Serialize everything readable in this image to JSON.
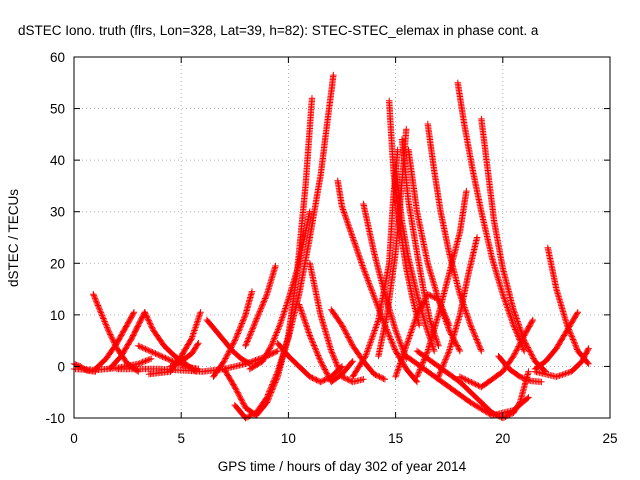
{
  "chart_data": {
    "type": "scatter",
    "title": "dSTEC Iono. truth (flrs, Lon=328, Lat=39, h=82): STEC-STEC_elemax in phase cont. a",
    "xlabel": "GPS time / hours of day 302 of year 2014",
    "ylabel": "dSTEC  / TECUs",
    "xlim": [
      0,
      25
    ],
    "ylim": [
      -10,
      60
    ],
    "xticks": [
      0,
      5,
      10,
      15,
      20,
      25
    ],
    "yticks": [
      -10,
      0,
      10,
      20,
      30,
      40,
      50,
      60
    ],
    "grid": true,
    "marker": "+",
    "series_color": "#ff0000",
    "arcs": [
      {
        "x": [
          0.0,
          0.3,
          0.6,
          1.0
        ],
        "y": [
          0.5,
          0.0,
          -0.8,
          -1.0
        ]
      },
      {
        "x": [
          0.0,
          1.0,
          2.0,
          3.0,
          3.6
        ],
        "y": [
          -0.5,
          -0.7,
          -0.3,
          0.5,
          1.5
        ]
      },
      {
        "x": [
          0.9,
          1.2,
          1.6,
          2.0,
          2.5,
          3.0
        ],
        "y": [
          14.0,
          11.0,
          7.0,
          3.5,
          0.5,
          -1.0
        ]
      },
      {
        "x": [
          1.0,
          1.5,
          2.0,
          2.4,
          2.8
        ],
        "y": [
          -0.5,
          1.5,
          4.5,
          7.5,
          10.5
        ]
      },
      {
        "x": [
          1.7,
          2.2,
          2.7,
          3.0,
          3.3
        ],
        "y": [
          -0.3,
          2.0,
          5.5,
          8.0,
          10.5
        ]
      },
      {
        "x": [
          3.3,
          3.7,
          4.2,
          4.7,
          5.2,
          5.7
        ],
        "y": [
          10.5,
          7.0,
          4.0,
          2.0,
          0.5,
          -1.0
        ]
      },
      {
        "x": [
          3.0,
          3.8,
          4.6,
          5.2,
          5.8
        ],
        "y": [
          4.0,
          2.5,
          1.0,
          0.0,
          -0.5
        ]
      },
      {
        "x": [
          3.5,
          4.5,
          5.0,
          5.5,
          5.9
        ],
        "y": [
          -1.5,
          -1.0,
          2.0,
          5.5,
          10.5
        ]
      },
      {
        "x": [
          4.5,
          5.0,
          5.5,
          5.8
        ],
        "y": [
          0.0,
          1.0,
          2.5,
          4.5
        ]
      },
      {
        "x": [
          2.0,
          4.0,
          6.0,
          7.0,
          8.0,
          9.0,
          9.5
        ],
        "y": [
          -0.5,
          -0.5,
          -1.0,
          -0.5,
          0.5,
          2.0,
          3.0
        ]
      },
      {
        "x": [
          6.2,
          6.6,
          7.0,
          7.4,
          7.8,
          8.2
        ],
        "y": [
          9.0,
          7.0,
          5.0,
          3.0,
          1.5,
          0.5
        ]
      },
      {
        "x": [
          7.0,
          7.5,
          8.0,
          8.5,
          9.0,
          9.5,
          10.0,
          10.4,
          10.8,
          11.1
        ],
        "y": [
          -0.5,
          -4.0,
          -8.0,
          -9.5,
          -7.0,
          -2.0,
          6.0,
          18.0,
          35.0,
          52.0
        ]
      },
      {
        "x": [
          7.5,
          8.0,
          8.5,
          9.0,
          9.5,
          10.0,
          10.5,
          11.0,
          11.5,
          11.9,
          12.1
        ],
        "y": [
          -7.5,
          -10.0,
          -9.0,
          -6.0,
          -1.0,
          5.5,
          14.0,
          25.0,
          37.0,
          50.0,
          56.5
        ]
      },
      {
        "x": [
          6.5,
          7.0,
          7.5,
          8.0,
          8.3
        ],
        "y": [
          -2.0,
          1.0,
          5.0,
          10.0,
          14.5
        ]
      },
      {
        "x": [
          8.2,
          8.8,
          9.2,
          9.6,
          10.0,
          10.5,
          11.0
        ],
        "y": [
          -0.5,
          1.0,
          4.0,
          8.0,
          13.0,
          20.0,
          30.0
        ]
      },
      {
        "x": [
          8.0,
          8.5,
          9.0,
          9.4
        ],
        "y": [
          4.0,
          9.0,
          14.0,
          19.5
        ]
      },
      {
        "x": [
          9.5,
          10.0,
          10.5,
          11.0,
          11.5,
          12.0,
          12.5
        ],
        "y": [
          4.5,
          2.0,
          0.0,
          -2.0,
          -3.0,
          -2.0,
          0.0
        ]
      },
      {
        "x": [
          10.5,
          11.0,
          11.5,
          12.0,
          12.5,
          13.0
        ],
        "y": [
          12.0,
          6.0,
          1.0,
          -3.0,
          -1.5,
          1.0
        ]
      },
      {
        "x": [
          11.0,
          11.5,
          12.0,
          12.5,
          13.0,
          13.5
        ],
        "y": [
          20.0,
          10.0,
          3.0,
          -2.0,
          -3.0,
          -2.5
        ]
      },
      {
        "x": [
          12.3,
          12.5,
          13.0,
          13.5,
          14.0,
          14.5,
          15.0,
          15.5,
          16.0
        ],
        "y": [
          36.0,
          31.0,
          25.0,
          19.0,
          13.5,
          8.0,
          3.0,
          -0.5,
          -3.0
        ]
      },
      {
        "x": [
          12.0,
          12.5,
          13.0,
          13.5,
          14.0,
          14.5
        ],
        "y": [
          11.0,
          8.0,
          4.0,
          1.0,
          -1.5,
          -2.5
        ]
      },
      {
        "x": [
          13.5,
          14.0,
          14.5,
          15.0,
          15.5
        ],
        "y": [
          31.5,
          22.0,
          14.0,
          7.0,
          1.5
        ]
      },
      {
        "x": [
          13.0,
          13.6,
          14.2,
          14.7,
          14.9,
          15.1
        ],
        "y": [
          -2.0,
          2.0,
          9.0,
          20.0,
          33.0,
          42.0
        ]
      },
      {
        "x": [
          14.7,
          14.9,
          15.2,
          15.5,
          15.8,
          16.1
        ],
        "y": [
          51.5,
          38.0,
          27.0,
          19.0,
          13.0,
          8.0
        ]
      },
      {
        "x": [
          14.2,
          14.6,
          15.0,
          15.3,
          15.5
        ],
        "y": [
          2.0,
          10.0,
          22.0,
          36.0,
          46.0
        ]
      },
      {
        "x": [
          15.0,
          15.3,
          15.6,
          16.0,
          16.4,
          16.8
        ],
        "y": [
          39.0,
          28.0,
          21.0,
          14.0,
          8.0,
          3.0
        ]
      },
      {
        "x": [
          15.3,
          15.6,
          16.0,
          16.3,
          16.6,
          17.0
        ],
        "y": [
          44.0,
          32.0,
          22.0,
          15.0,
          9.0,
          4.0
        ]
      },
      {
        "x": [
          15.6,
          16.0,
          16.5,
          17.0,
          17.5,
          18.0
        ],
        "y": [
          42.0,
          30.0,
          20.0,
          13.0,
          7.0,
          3.0
        ]
      },
      {
        "x": [
          15.0,
          15.5,
          16.0,
          16.5,
          17.0,
          17.5
        ],
        "y": [
          -2.0,
          4.0,
          10.0,
          14.0,
          13.0,
          8.0
        ]
      },
      {
        "x": [
          16.0,
          16.5,
          17.0,
          17.5,
          18.0,
          18.3
        ],
        "y": [
          -2.0,
          3.0,
          10.0,
          18.0,
          26.0,
          34.0
        ]
      },
      {
        "x": [
          16.5,
          16.8,
          17.1,
          17.5,
          18.0,
          18.5,
          19.0
        ],
        "y": [
          47.0,
          38.0,
          30.0,
          22.0,
          14.0,
          8.0,
          3.0
        ]
      },
      {
        "x": [
          17.0,
          17.5,
          18.0,
          18.4,
          18.8
        ],
        "y": [
          -2.0,
          3.0,
          10.0,
          18.0,
          25.0
        ]
      },
      {
        "x": [
          17.9,
          18.2,
          18.6,
          19.0,
          19.5,
          20.0,
          20.5,
          21.0
        ],
        "y": [
          55.0,
          47.0,
          38.0,
          30.0,
          21.0,
          14.0,
          8.0,
          3.0
        ]
      },
      {
        "x": [
          19.0,
          19.3,
          19.6,
          20.0,
          20.5,
          21.0,
          21.5,
          22.0
        ],
        "y": [
          48.0,
          38.0,
          28.0,
          19.0,
          11.0,
          5.0,
          1.0,
          -1.0
        ]
      },
      {
        "x": [
          16.0,
          17.0,
          18.0,
          19.0,
          19.5,
          20.0,
          20.5,
          20.8,
          21.2
        ],
        "y": [
          3.0,
          0.0,
          -3.0,
          -7.0,
          -9.0,
          -10.0,
          -9.0,
          -7.0,
          -1.0
        ]
      },
      {
        "x": [
          15.5,
          16.5,
          17.5,
          18.5,
          19.5,
          20.5,
          21.2
        ],
        "y": [
          2.0,
          -1.0,
          -4.0,
          -7.0,
          -9.5,
          -8.5,
          -6.0
        ]
      },
      {
        "x": [
          18.0,
          19.0,
          20.0,
          20.5,
          21.0,
          21.4
        ],
        "y": [
          -2.0,
          -4.0,
          -1.0,
          2.0,
          6.0,
          9.0
        ]
      },
      {
        "x": [
          19.8,
          20.3,
          20.8,
          21.3,
          21.8
        ],
        "y": [
          2.0,
          -0.5,
          -2.0,
          -2.8,
          -3.0
        ]
      },
      {
        "x": [
          22.1,
          22.5,
          23.0,
          23.5,
          24.0
        ],
        "y": [
          23.0,
          15.0,
          8.0,
          3.0,
          0.5
        ]
      },
      {
        "x": [
          21.5,
          22.0,
          22.5,
          23.0,
          23.5
        ],
        "y": [
          -0.5,
          1.0,
          3.5,
          7.0,
          10.5
        ]
      },
      {
        "x": [
          21.5,
          22.5,
          23.2,
          23.7,
          24.0
        ],
        "y": [
          -1.0,
          -2.0,
          -1.0,
          1.0,
          3.5
        ]
      }
    ]
  }
}
